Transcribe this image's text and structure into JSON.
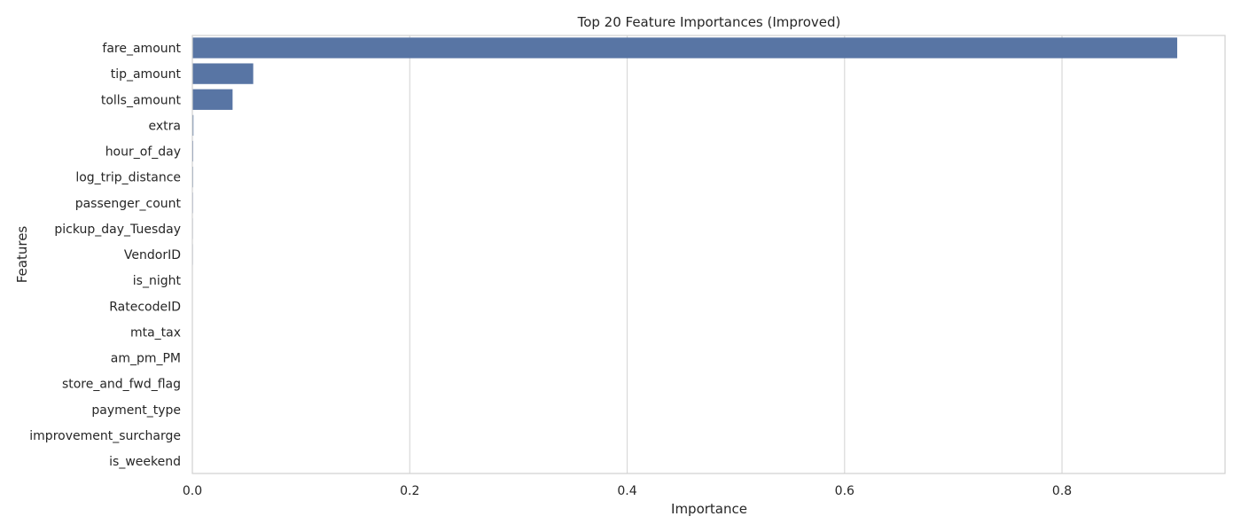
{
  "chart_data": {
    "type": "bar",
    "orientation": "horizontal",
    "title": "Top 20 Feature Importances (Improved)",
    "xlabel": "Importance",
    "ylabel": "Features",
    "xlim": [
      0,
      0.95
    ],
    "xticks": [
      0.0,
      0.2,
      0.4,
      0.6,
      0.8
    ],
    "xtick_labels": [
      "0.0",
      "0.2",
      "0.4",
      "0.6",
      "0.8"
    ],
    "grid": "vertical",
    "bar_color": "#5875a4",
    "categories": [
      "fare_amount",
      "tip_amount",
      "tolls_amount",
      "extra",
      "hour_of_day",
      "log_trip_distance",
      "passenger_count",
      "pickup_day_Tuesday",
      "VendorID",
      "is_night",
      "RatecodeID",
      "mta_tax",
      "am_pm_PM",
      "store_and_fwd_flag",
      "payment_type",
      "improvement_surcharge",
      "is_weekend"
    ],
    "values": [
      0.906,
      0.056,
      0.037,
      0.001,
      0.0008,
      0.0007,
      0.0006,
      0.0005,
      0.0005,
      0.0004,
      0.0004,
      0.0003,
      0.0003,
      0.0002,
      0.0002,
      0.0001,
      0.0001
    ]
  }
}
